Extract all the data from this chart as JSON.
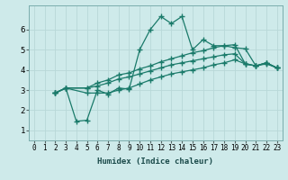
{
  "bg_color": "#ceeaea",
  "grid_color": "#b8d8d8",
  "line_color": "#1a7a6a",
  "marker": "+",
  "marker_size": 4,
  "marker_lw": 1.0,
  "line_width": 0.9,
  "xlabel": "Humidex (Indice chaleur)",
  "ylim": [
    0.5,
    7.2
  ],
  "xlim": [
    -0.5,
    23.5
  ],
  "yticks": [
    1,
    2,
    3,
    4,
    5,
    6
  ],
  "xticks": [
    0,
    1,
    2,
    3,
    4,
    5,
    6,
    7,
    8,
    9,
    10,
    11,
    12,
    13,
    14,
    15,
    16,
    17,
    18,
    19,
    20,
    21,
    22,
    23
  ],
  "curves": [
    {
      "x": [
        2,
        3,
        4,
        5,
        6,
        7,
        8,
        9,
        10,
        11,
        12,
        13,
        14,
        15,
        16,
        17,
        18,
        19,
        20,
        21,
        22,
        23
      ],
      "y": [
        2.85,
        3.1,
        1.45,
        1.5,
        3.0,
        2.8,
        3.1,
        3.05,
        5.0,
        6.0,
        6.65,
        6.3,
        6.65,
        5.0,
        5.5,
        5.2,
        5.2,
        5.1,
        5.05,
        4.2,
        4.3,
        4.1
      ]
    },
    {
      "x": [
        2,
        3,
        5,
        6,
        7,
        8,
        9,
        10,
        11,
        12,
        13,
        14,
        15,
        16,
        17,
        18,
        19,
        20,
        21,
        22,
        23
      ],
      "y": [
        2.85,
        3.1,
        3.1,
        3.35,
        3.5,
        3.75,
        3.85,
        4.05,
        4.2,
        4.4,
        4.55,
        4.7,
        4.85,
        4.95,
        5.1,
        5.2,
        5.25,
        4.3,
        4.2,
        4.35,
        4.1
      ]
    },
    {
      "x": [
        2,
        3,
        5,
        6,
        7,
        8,
        9,
        10,
        11,
        12,
        13,
        14,
        15,
        16,
        17,
        18,
        19,
        20,
        21,
        22,
        23
      ],
      "y": [
        2.85,
        3.1,
        3.1,
        3.2,
        3.35,
        3.55,
        3.65,
        3.8,
        3.95,
        4.1,
        4.25,
        4.35,
        4.45,
        4.55,
        4.65,
        4.75,
        4.8,
        4.3,
        4.2,
        4.35,
        4.1
      ]
    },
    {
      "x": [
        2,
        3,
        5,
        6,
        7,
        8,
        9,
        10,
        11,
        12,
        13,
        14,
        15,
        16,
        17,
        18,
        19,
        20,
        21,
        22,
        23
      ],
      "y": [
        2.85,
        3.1,
        2.85,
        2.85,
        2.85,
        3.0,
        3.1,
        3.3,
        3.5,
        3.65,
        3.8,
        3.9,
        4.0,
        4.1,
        4.25,
        4.35,
        4.5,
        4.3,
        4.2,
        4.35,
        4.1
      ]
    }
  ]
}
